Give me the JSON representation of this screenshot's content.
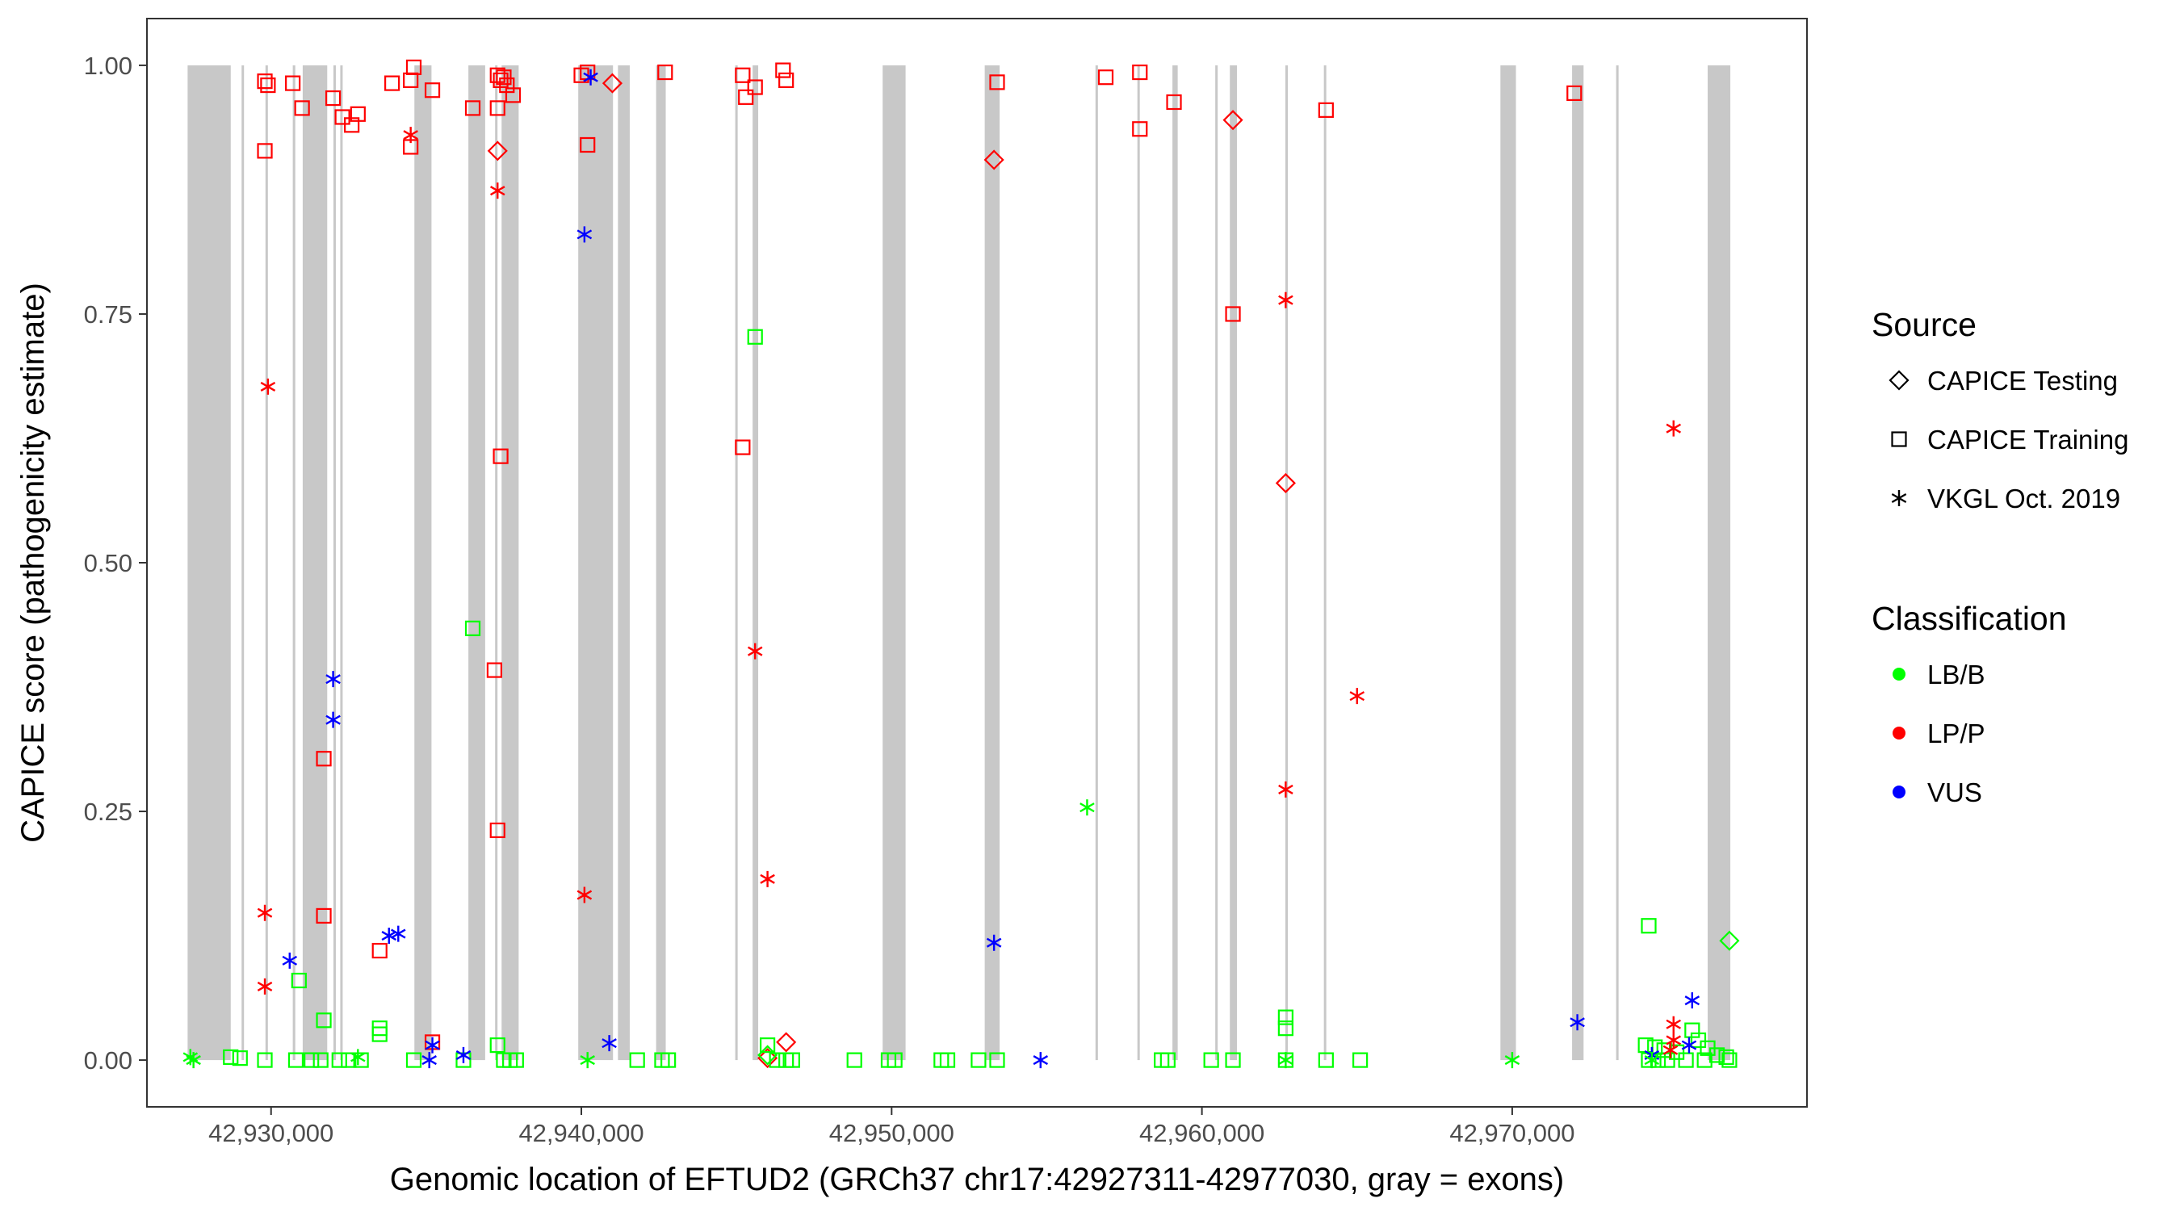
{
  "chart_data": {
    "type": "scatter",
    "xlabel": "Genomic location of EFTUD2 (GRCh37 chr17:42927311-42977030, gray = exons)",
    "ylabel": "CAPICE score (pathogenicity estimate)",
    "xlim": [
      42926000,
      42979500
    ],
    "ylim": [
      -0.047,
      1.047
    ],
    "x_ticks": [
      42930000,
      42940000,
      42950000,
      42960000,
      42970000
    ],
    "x_tick_labels": [
      "42,930,000",
      "42,940,000",
      "42,950,000",
      "42,960,000",
      "42,970,000"
    ],
    "y_ticks": [
      0,
      0.25,
      0.5,
      0.75,
      1
    ],
    "y_tick_labels": [
      "0.00",
      "0.25",
      "0.50",
      "0.75",
      "1.00"
    ],
    "grid": false,
    "exons": [
      [
        42927311,
        42928700
      ],
      [
        42929050,
        42929110
      ],
      [
        42929820,
        42929880
      ],
      [
        42930700,
        42930780
      ],
      [
        42931020,
        42931810
      ],
      [
        42932010,
        42932070
      ],
      [
        42932230,
        42932290
      ],
      [
        42934620,
        42935170
      ],
      [
        42936360,
        42936900
      ],
      [
        42937220,
        42937280
      ],
      [
        42937430,
        42937980
      ],
      [
        42939900,
        42941020
      ],
      [
        42941180,
        42941560
      ],
      [
        42942410,
        42942720
      ],
      [
        42944960,
        42945020
      ],
      [
        42945520,
        42945700
      ],
      [
        42949710,
        42950450
      ],
      [
        42953000,
        42953480
      ],
      [
        42956570,
        42956630
      ],
      [
        42957920,
        42957980
      ],
      [
        42959050,
        42959220
      ],
      [
        42960430,
        42960490
      ],
      [
        42960900,
        42961130
      ],
      [
        42962690,
        42962750
      ],
      [
        42963930,
        42964000
      ],
      [
        42969620,
        42970120
      ],
      [
        42971930,
        42972300
      ],
      [
        42973350,
        42973410
      ],
      [
        42976300,
        42977030
      ]
    ],
    "legend": {
      "position": "right",
      "source_title": "Source",
      "source_items": [
        {
          "name": "CAPICE Testing",
          "shape": "diamond"
        },
        {
          "name": "CAPICE Training",
          "shape": "square"
        },
        {
          "name": "VKGL Oct. 2019",
          "shape": "asterisk"
        }
      ],
      "class_title": "Classification",
      "class_items": [
        {
          "name": "LB/B",
          "color": "#00FF00"
        },
        {
          "name": "LP/P",
          "color": "#FF0000"
        },
        {
          "name": "VUS",
          "color": "#0000FF"
        }
      ]
    },
    "series": [
      {
        "source": "CAPICE Testing",
        "class": "LP/P",
        "points": [
          [
            42937300,
            0.914
          ],
          [
            42941000,
            0.982
          ],
          [
            42953300,
            0.905
          ],
          [
            42961000,
            0.945
          ],
          [
            42962700,
            0.58
          ],
          [
            42946600,
            0.018
          ],
          [
            42946000,
            0.002
          ]
        ]
      },
      {
        "source": "CAPICE Testing",
        "class": "LB/B",
        "points": [
          [
            42977000,
            0.12
          ],
          [
            42946000,
            0.005
          ]
        ]
      },
      {
        "source": "CAPICE Training",
        "class": "LP/P",
        "points": [
          [
            42929800,
            0.984
          ],
          [
            42929900,
            0.98
          ],
          [
            42930700,
            0.982
          ],
          [
            42931000,
            0.957
          ],
          [
            42932000,
            0.967
          ],
          [
            42932300,
            0.948
          ],
          [
            42932600,
            0.94
          ],
          [
            42932800,
            0.951
          ],
          [
            42933900,
            0.982
          ],
          [
            42934500,
            0.985
          ],
          [
            42934600,
            0.998
          ],
          [
            42934500,
            0.918
          ],
          [
            42935200,
            0.975
          ],
          [
            42936500,
            0.957
          ],
          [
            42937300,
            0.99
          ],
          [
            42937400,
            0.985
          ],
          [
            42937500,
            0.988
          ],
          [
            42937600,
            0.98
          ],
          [
            42937800,
            0.97
          ],
          [
            42937300,
            0.957
          ],
          [
            42940000,
            0.99
          ],
          [
            42940200,
            0.993
          ],
          [
            42940200,
            0.92
          ],
          [
            42942700,
            0.993
          ],
          [
            42945200,
            0.99
          ],
          [
            42945300,
            0.968
          ],
          [
            42945600,
            0.978
          ],
          [
            42946500,
            0.995
          ],
          [
            42946600,
            0.985
          ],
          [
            42953400,
            0.983
          ],
          [
            42956900,
            0.988
          ],
          [
            42958000,
            0.993
          ],
          [
            42958000,
            0.936
          ],
          [
            42959100,
            0.963
          ],
          [
            42964000,
            0.955
          ],
          [
            42972000,
            0.972
          ],
          [
            42929800,
            0.914
          ],
          [
            42961000,
            0.75
          ],
          [
            42937400,
            0.607
          ],
          [
            42945200,
            0.616
          ],
          [
            42937200,
            0.392
          ],
          [
            42931700,
            0.303
          ],
          [
            42937300,
            0.231
          ],
          [
            42931700,
            0.145
          ],
          [
            42933500,
            0.11
          ],
          [
            42935200,
            0.018
          ]
        ]
      },
      {
        "source": "CAPICE Training",
        "class": "LB/B",
        "points": [
          [
            42945600,
            0.727
          ],
          [
            42936500,
            0.434
          ],
          [
            42974400,
            0.135
          ],
          [
            42930900,
            0.08
          ],
          [
            42931700,
            0.04
          ],
          [
            42933500,
            0.032
          ],
          [
            42933500,
            0.026
          ],
          [
            42962700,
            0.043
          ],
          [
            42962700,
            0.032
          ],
          [
            42937300,
            0.015
          ],
          [
            42946000,
            0.015
          ],
          [
            42928700,
            0.003
          ],
          [
            42929000,
            0.002
          ],
          [
            42929800,
            0.0
          ],
          [
            42930800,
            0.0
          ],
          [
            42931300,
            0.0
          ],
          [
            42931600,
            0.0
          ],
          [
            42932200,
            0.0
          ],
          [
            42932500,
            0.0
          ],
          [
            42932900,
            0.0
          ],
          [
            42934600,
            0.0
          ],
          [
            42936200,
            0.0
          ],
          [
            42937500,
            0.0
          ],
          [
            42937700,
            0.0
          ],
          [
            42937900,
            0.0
          ],
          [
            42941800,
            0.0
          ],
          [
            42942600,
            0.0
          ],
          [
            42942800,
            0.0
          ],
          [
            42946300,
            0.0
          ],
          [
            42946600,
            0.0
          ],
          [
            42946800,
            0.0
          ],
          [
            42948800,
            0.0
          ],
          [
            42949900,
            0.0
          ],
          [
            42950100,
            0.0
          ],
          [
            42951600,
            0.0
          ],
          [
            42951800,
            0.0
          ],
          [
            42952800,
            0.0
          ],
          [
            42953400,
            0.0
          ],
          [
            42958700,
            0.0
          ],
          [
            42958900,
            0.0
          ],
          [
            42960300,
            0.0
          ],
          [
            42961000,
            0.0
          ],
          [
            42962700,
            0.0
          ],
          [
            42964000,
            0.0
          ],
          [
            42965100,
            0.0
          ],
          [
            42974300,
            0.015
          ],
          [
            42974600,
            0.013
          ],
          [
            42974900,
            0.01
          ],
          [
            42975300,
            0.008
          ],
          [
            42975800,
            0.03
          ],
          [
            42976000,
            0.02
          ],
          [
            42976300,
            0.012
          ],
          [
            42976600,
            0.005
          ],
          [
            42976900,
            0.003
          ],
          [
            42974400,
            0.0
          ],
          [
            42974700,
            0.0
          ],
          [
            42975000,
            0.0
          ],
          [
            42975600,
            0.0
          ],
          [
            42976200,
            0.0
          ],
          [
            42977000,
            0.0
          ]
        ]
      },
      {
        "source": "VKGL Oct. 2019",
        "class": "LP/P",
        "points": [
          [
            42934500,
            0.93
          ],
          [
            42937300,
            0.874
          ],
          [
            42962700,
            0.764
          ],
          [
            42929900,
            0.677
          ],
          [
            42975200,
            0.635
          ],
          [
            42945600,
            0.411
          ],
          [
            42965000,
            0.366
          ],
          [
            42962700,
            0.272
          ],
          [
            42946000,
            0.182
          ],
          [
            42940100,
            0.166
          ],
          [
            42929800,
            0.148
          ],
          [
            42929800,
            0.074
          ],
          [
            42975200,
            0.036
          ],
          [
            42975200,
            0.02
          ],
          [
            42975100,
            0.01
          ]
        ]
      },
      {
        "source": "VKGL Oct. 2019",
        "class": "VUS",
        "points": [
          [
            42940300,
            0.988
          ],
          [
            42940100,
            0.83
          ],
          [
            42932000,
            0.383
          ],
          [
            42932000,
            0.342
          ],
          [
            42933800,
            0.125
          ],
          [
            42934100,
            0.127
          ],
          [
            42953300,
            0.118
          ],
          [
            42930600,
            0.1
          ],
          [
            42975800,
            0.06
          ],
          [
            42972100,
            0.038
          ],
          [
            42940900,
            0.017
          ],
          [
            42935200,
            0.015
          ],
          [
            42975700,
            0.015
          ],
          [
            42936200,
            0.005
          ],
          [
            42974500,
            0.005
          ],
          [
            42935100,
            0.0
          ],
          [
            42954800,
            0.0
          ]
        ]
      },
      {
        "source": "VKGL Oct. 2019",
        "class": "LB/B",
        "points": [
          [
            42956300,
            0.254
          ],
          [
            42927400,
            0.003
          ],
          [
            42927500,
            0.0
          ],
          [
            42932800,
            0.003
          ],
          [
            42940200,
            0.0
          ],
          [
            42962700,
            0.0
          ],
          [
            42970000,
            0.0
          ],
          [
            42974500,
            0.0
          ]
        ]
      }
    ]
  }
}
